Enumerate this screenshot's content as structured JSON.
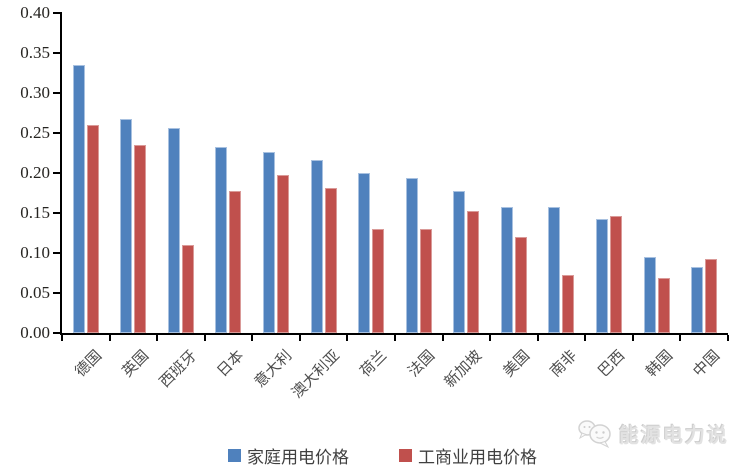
{
  "chart_data": {
    "type": "bar",
    "categories": [
      "德国",
      "英国",
      "西班牙",
      "日本",
      "意大利",
      "澳大利亚",
      "荷兰",
      "法国",
      "新加坡",
      "美国",
      "南非",
      "巴西",
      "韩国",
      "中国"
    ],
    "series": [
      {
        "name": "家庭用电价格",
        "color": "#4F81BD",
        "values": [
          0.335,
          0.268,
          0.256,
          0.232,
          0.226,
          0.216,
          0.2,
          0.194,
          0.178,
          0.158,
          0.158,
          0.143,
          0.095,
          0.082
        ]
      },
      {
        "name": "工商业用电价格",
        "color": "#C0504D",
        "values": [
          0.26,
          0.235,
          0.11,
          0.177,
          0.197,
          0.181,
          0.13,
          0.13,
          0.152,
          0.12,
          0.072,
          0.146,
          0.069,
          0.093
        ]
      }
    ],
    "title": "",
    "xlabel": "",
    "ylabel": "",
    "ylim": [
      0,
      0.4
    ],
    "ytick_step": 0.05,
    "yticks": [
      "0.00",
      "0.05",
      "0.10",
      "0.15",
      "0.20",
      "0.25",
      "0.30",
      "0.35",
      "0.40"
    ],
    "grid": false,
    "legend_position": "bottom",
    "axis_color": "#000000"
  },
  "watermark": {
    "text": "能源电力说",
    "icon": "chat-bubbles-logo-icon"
  }
}
